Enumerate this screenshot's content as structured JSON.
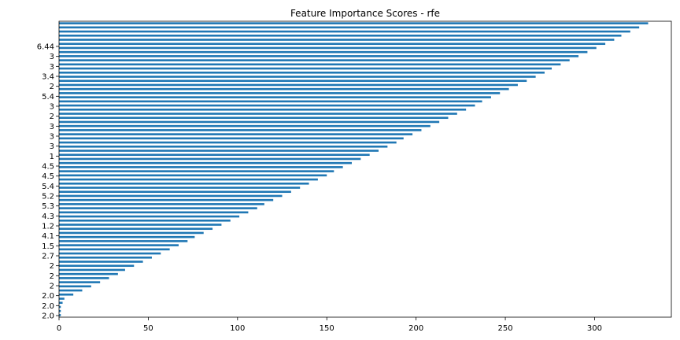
{
  "chart_data": {
    "type": "bar",
    "orientation": "horizontal",
    "title": "Feature Importance Scores - rfe",
    "xlabel": "",
    "ylabel": "",
    "xlim": [
      0,
      343
    ],
    "xticks": [
      0,
      50,
      100,
      150,
      200,
      250,
      300
    ],
    "grid": false,
    "legend": "none",
    "bar_color": "#1f77b4",
    "values": [
      330,
      325,
      320,
      315,
      311,
      306,
      301,
      296,
      291,
      286,
      281,
      276,
      272,
      267,
      262,
      257,
      252,
      247,
      242,
      237,
      233,
      228,
      223,
      218,
      213,
      208,
      203,
      198,
      193,
      189,
      184,
      179,
      174,
      169,
      164,
      159,
      154,
      150,
      145,
      140,
      135,
      130,
      125,
      120,
      115,
      111,
      106,
      101,
      96,
      91,
      86,
      81,
      76,
      72,
      67,
      62,
      57,
      52,
      47,
      42,
      37,
      33,
      28,
      23,
      18,
      13,
      8,
      3,
      2,
      1,
      1,
      1
    ],
    "visible_category_labels": [
      "6.44",
      "3",
      "3",
      "3.4",
      "2",
      "5.4",
      "3",
      "2",
      "3",
      "3",
      "3",
      "1",
      "4.5",
      "4.5",
      "5.4",
      "5.2",
      "5.3",
      "4.3",
      "1.2",
      "4.1",
      "1.5",
      "2.7",
      "2",
      "2",
      "2",
      "2.0",
      "2.0",
      "2.0"
    ]
  }
}
